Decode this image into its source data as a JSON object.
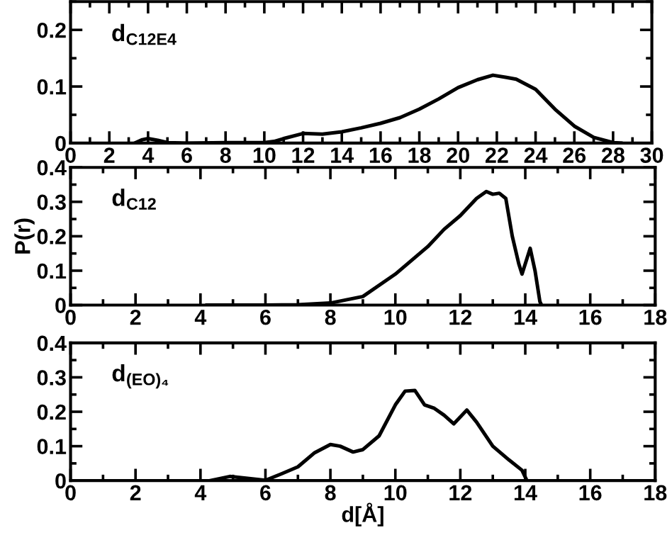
{
  "chart_data": [
    {
      "type": "line",
      "annotations": [
        "d$_{C12E4}$"
      ],
      "xlim": [
        0,
        30
      ],
      "xticks": [
        0,
        2,
        4,
        6,
        8,
        10,
        12,
        14,
        16,
        18,
        20,
        22,
        24,
        26,
        28,
        30
      ],
      "ylim": [
        0,
        0.25
      ],
      "yticks": [
        0,
        0.1,
        0.2
      ],
      "series": [
        {
          "color": "#000000",
          "x": [
            3.3,
            3.7,
            4.0,
            4.5,
            5.0,
            6,
            8,
            10,
            10.5,
            11,
            12,
            13,
            14,
            15,
            16,
            17,
            18,
            19,
            20,
            21,
            21.8,
            22.5,
            23,
            24,
            25,
            26,
            27,
            28,
            28.4
          ],
          "values": [
            0,
            0.006,
            0.008,
            0.005,
            0.001,
            0,
            0.001,
            0.001,
            0.003,
            0.008,
            0.017,
            0.016,
            0.02,
            0.027,
            0.035,
            0.045,
            0.06,
            0.078,
            0.098,
            0.112,
            0.12,
            0.116,
            0.113,
            0.095,
            0.06,
            0.03,
            0.01,
            0.001,
            0
          ]
        }
      ]
    },
    {
      "type": "line",
      "ylabel": "P(r)",
      "xlim": [
        0,
        18
      ],
      "xticks": [
        0,
        2,
        4,
        6,
        8,
        10,
        12,
        14,
        16,
        18
      ],
      "ylim": [
        0,
        0.4
      ],
      "yticks": [
        0,
        0.1,
        0.2,
        0.3,
        0.4
      ],
      "annotations": [
        "d$_{C12}$"
      ],
      "series": [
        {
          "color": "#000000",
          "x": [
            4.2,
            6,
            7,
            8,
            9,
            10,
            11,
            11.5,
            12,
            12.5,
            12.8,
            13.0,
            13.2,
            13.4,
            13.6,
            13.8,
            13.9,
            14.0,
            14.15,
            14.3,
            14.45,
            14.5
          ],
          "values": [
            0,
            0,
            0.001,
            0.006,
            0.025,
            0.09,
            0.17,
            0.22,
            0.26,
            0.31,
            0.33,
            0.322,
            0.325,
            0.31,
            0.2,
            0.12,
            0.09,
            0.12,
            0.165,
            0.1,
            0.01,
            0
          ]
        }
      ]
    },
    {
      "type": "line",
      "xlabel": "d[Å]",
      "xlim": [
        0,
        18
      ],
      "xticks": [
        0,
        2,
        4,
        6,
        8,
        10,
        12,
        14,
        16,
        18
      ],
      "ylim": [
        0,
        0.4
      ],
      "yticks": [
        0,
        0.1,
        0.2,
        0.3,
        0.4
      ],
      "annotations": [
        "d$_{(EO)₄}$"
      ],
      "series": [
        {
          "color": "#000000",
          "x": [
            4.3,
            4.9,
            5.5,
            6.0,
            6.5,
            7.0,
            7.5,
            8.0,
            8.3,
            8.7,
            9.0,
            9.5,
            10.0,
            10.3,
            10.6,
            10.9,
            11.2,
            11.5,
            11.8,
            12.2,
            12.5,
            13.0,
            13.5,
            13.9,
            14.05
          ],
          "values": [
            0,
            0.012,
            0.006,
            0.001,
            0.02,
            0.04,
            0.08,
            0.105,
            0.1,
            0.083,
            0.09,
            0.13,
            0.22,
            0.26,
            0.262,
            0.22,
            0.21,
            0.19,
            0.165,
            0.205,
            0.17,
            0.1,
            0.06,
            0.03,
            0
          ]
        }
      ]
    }
  ]
}
